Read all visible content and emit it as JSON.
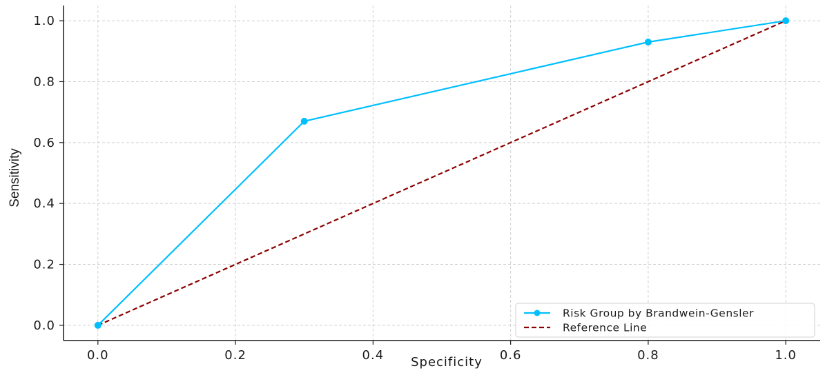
{
  "chart_data": {
    "type": "line",
    "title": "",
    "xlabel": "Specificity",
    "ylabel": "Sensitivity",
    "xlim": [
      -0.05,
      1.05
    ],
    "ylim": [
      -0.05,
      1.05
    ],
    "xticks": [
      "0.0",
      "0.2",
      "0.4",
      "0.6",
      "0.8",
      "1.0"
    ],
    "yticks": [
      "0.0",
      "0.2",
      "0.4",
      "0.6",
      "0.8",
      "1.0"
    ],
    "grid": true,
    "legend_position": "bottom-right",
    "series": [
      {
        "name": "Risk Group by Brandwein-Gensler",
        "x": [
          0.0,
          0.3,
          0.8,
          1.0
        ],
        "y": [
          0.0,
          0.67,
          0.93,
          1.0
        ],
        "color": "#00bfff",
        "style": "solid",
        "markers": true
      },
      {
        "name": "Reference Line",
        "x": [
          0.0,
          1.0
        ],
        "y": [
          0.0,
          1.0
        ],
        "color": "#8b0000",
        "style": "dashed",
        "markers": false
      }
    ]
  }
}
